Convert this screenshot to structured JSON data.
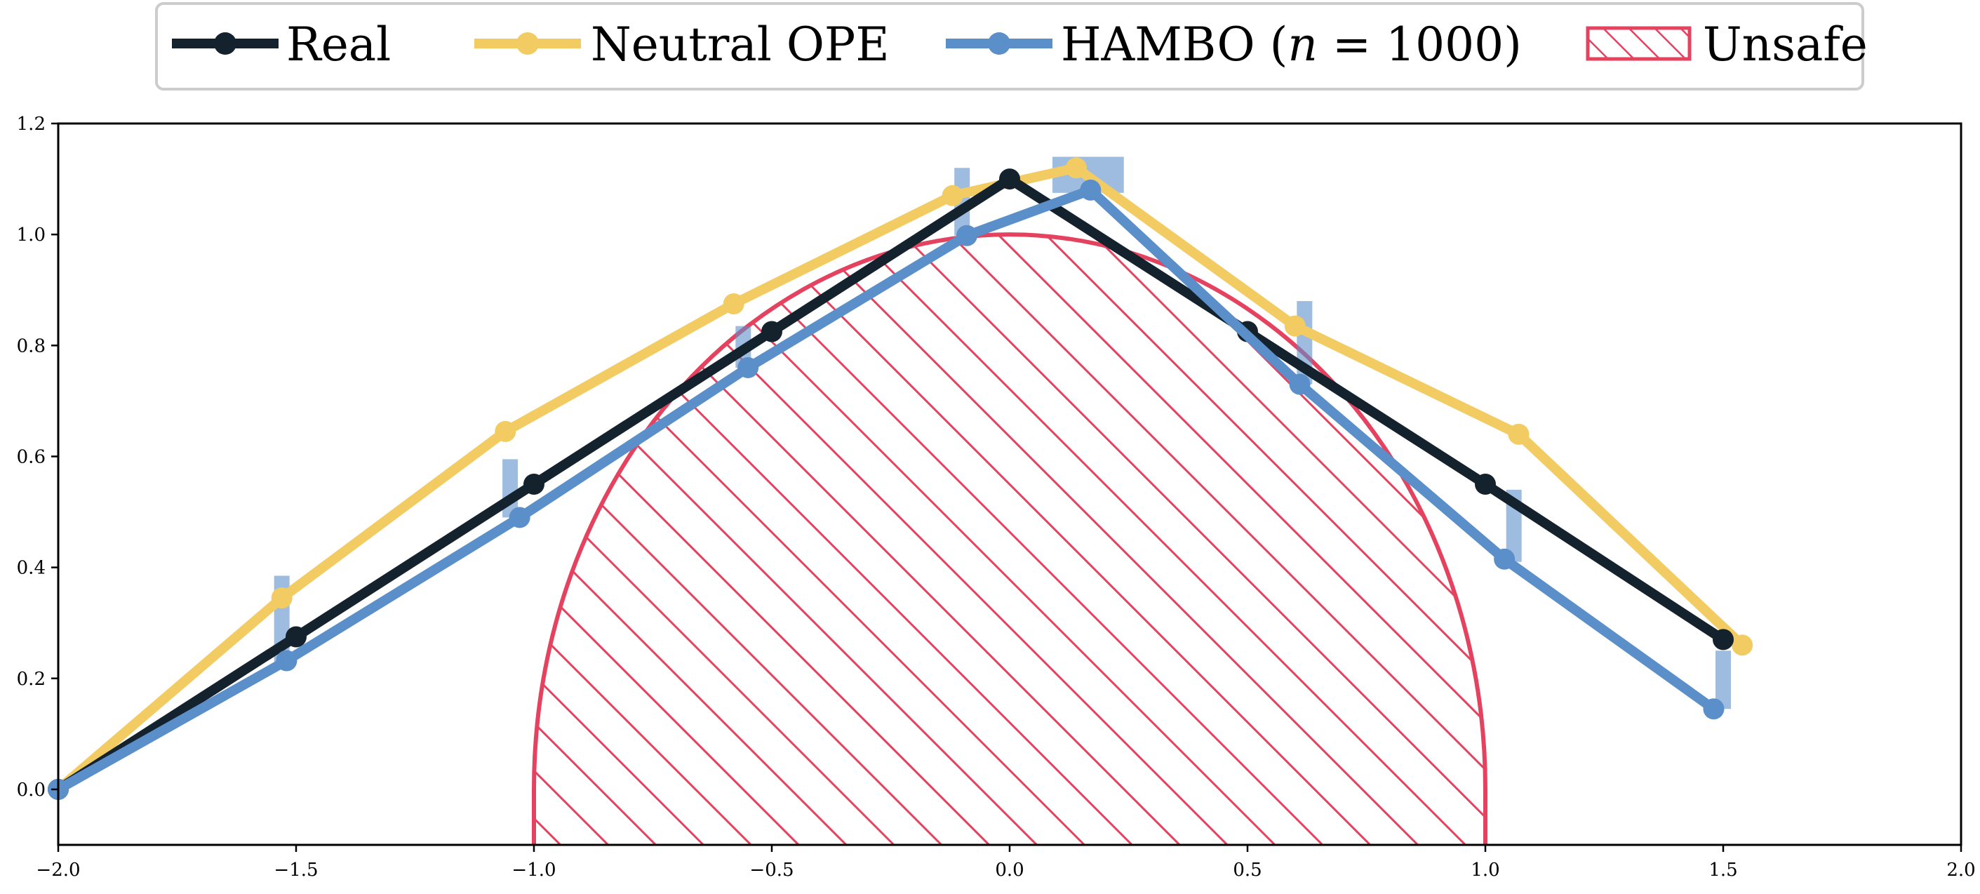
{
  "chart_data": {
    "type": "line",
    "title": "",
    "xlabel": "",
    "ylabel": "",
    "xlim": [
      -2.0,
      2.0
    ],
    "ylim": [
      -0.1,
      1.2
    ],
    "x_ticks": [
      "−2.0",
      "−1.5",
      "−1.0",
      "−0.5",
      "0.0",
      "0.5",
      "1.0",
      "1.5",
      "2.0"
    ],
    "x_tick_values": [
      -2.0,
      -1.5,
      -1.0,
      -0.5,
      0.0,
      0.5,
      1.0,
      1.5,
      2.0
    ],
    "y_ticks": [
      "0.0",
      "0.2",
      "0.4",
      "0.6",
      "0.8",
      "1.0",
      "1.2"
    ],
    "y_tick_values": [
      0.0,
      0.2,
      0.4,
      0.6,
      0.8,
      1.0,
      1.2
    ],
    "grid": false,
    "legend_position": "top-center",
    "legend": [
      {
        "key": "real",
        "label": "Real",
        "type": "line"
      },
      {
        "key": "neutral",
        "label": "Neutral OPE",
        "type": "line"
      },
      {
        "key": "hambo",
        "label": "HAMBO (",
        "label_italic": "n",
        "label_suffix": " = 1000)",
        "type": "line"
      },
      {
        "key": "unsafe",
        "label": "Unsafe",
        "type": "hatch"
      }
    ],
    "series": [
      {
        "key": "real",
        "name": "Real",
        "color": "#14222e",
        "points": [
          [
            -2.0,
            0.0
          ],
          [
            -1.5,
            0.275
          ],
          [
            -1.0,
            0.55
          ],
          [
            -0.5,
            0.825
          ],
          [
            0.0,
            1.1
          ],
          [
            0.5,
            0.825
          ],
          [
            1.0,
            0.55
          ],
          [
            1.5,
            0.27
          ]
        ]
      },
      {
        "key": "neutral",
        "name": "Neutral OPE",
        "color": "#f2cc63",
        "points": [
          [
            -2.0,
            0.0
          ],
          [
            -1.53,
            0.345
          ],
          [
            -1.06,
            0.645
          ],
          [
            -0.58,
            0.875
          ],
          [
            -0.12,
            1.07
          ],
          [
            0.14,
            1.12
          ],
          [
            0.6,
            0.835
          ],
          [
            1.07,
            0.64
          ],
          [
            1.54,
            0.26
          ]
        ]
      },
      {
        "key": "hambo",
        "name": "HAMBO (n = 1000)",
        "color": "#5b8fc9",
        "points": [
          [
            -2.0,
            0.0
          ],
          [
            -1.52,
            0.232
          ],
          [
            -1.03,
            0.49
          ],
          [
            -0.55,
            0.76
          ],
          [
            -0.09,
            0.998
          ],
          [
            0.17,
            1.08
          ],
          [
            0.61,
            0.73
          ],
          [
            1.04,
            0.415
          ],
          [
            1.48,
            0.145
          ]
        ]
      }
    ],
    "error_bars": [
      {
        "x": -1.53,
        "y0": 0.23,
        "y1": 0.385
      },
      {
        "x": -1.05,
        "y0": 0.49,
        "y1": 0.595
      },
      {
        "x": -0.56,
        "y0": 0.76,
        "y1": 0.835
      },
      {
        "x": -0.1,
        "y0": 0.998,
        "y1": 1.12
      },
      {
        "x": 0.165,
        "y0": 1.075,
        "y1": 1.14,
        "w": 0.15
      },
      {
        "x": 0.62,
        "y0": 0.73,
        "y1": 0.88
      },
      {
        "x": 1.06,
        "y0": 0.41,
        "y1": 0.54
      },
      {
        "x": 1.5,
        "y0": 0.145,
        "y1": 0.25
      }
    ],
    "unsafe_region": {
      "center_x": 0.0,
      "radius_x": 1.0,
      "radius_y": 1.0,
      "color": "#e5425f"
    }
  }
}
